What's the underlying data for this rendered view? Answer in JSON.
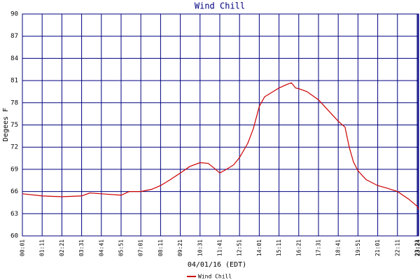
{
  "chart_data": {
    "type": "line",
    "title": "Wind Chill",
    "x_label": "04/01/16 (EDT)",
    "y_label": "Degees F",
    "x": [
      "00:01",
      "01:11",
      "02:21",
      "03:31",
      "04:00",
      "04:41",
      "05:51",
      "06:20",
      "07:01",
      "07:40",
      "08:11",
      "08:45",
      "09:21",
      "09:55",
      "10:31",
      "11:00",
      "11:20",
      "11:41",
      "12:00",
      "12:30",
      "12:51",
      "13:20",
      "13:40",
      "14:01",
      "14:20",
      "14:50",
      "15:11",
      "15:40",
      "15:55",
      "16:10",
      "16:21",
      "16:50",
      "17:31",
      "18:00",
      "18:41",
      "19:05",
      "19:20",
      "19:35",
      "19:51",
      "20:20",
      "21:01",
      "21:30",
      "22:11",
      "22:50",
      "23:21",
      "23:26"
    ],
    "series": [
      {
        "name": "Wind Chill",
        "color": "#cc0000",
        "values": [
          65.7,
          65.4,
          65.3,
          65.4,
          65.8,
          65.7,
          65.5,
          66.0,
          66.0,
          66.3,
          66.8,
          67.6,
          68.5,
          69.4,
          69.9,
          69.8,
          69.2,
          68.5,
          68.9,
          69.6,
          70.6,
          72.5,
          74.5,
          77.5,
          78.8,
          79.5,
          80.0,
          80.5,
          80.7,
          80.0,
          79.9,
          79.5,
          78.4,
          77.2,
          75.5,
          74.7,
          72.0,
          70.0,
          68.8,
          67.6,
          66.8,
          66.5,
          66.0,
          65.0,
          64.0,
          63.6
        ]
      }
    ],
    "xlim": [
      "00:01",
      "23:26"
    ],
    "xticks": [
      "00:01",
      "01:11",
      "02:21",
      "03:31",
      "04:41",
      "05:51",
      "07:01",
      "08:11",
      "09:21",
      "10:31",
      "11:41",
      "12:51",
      "14:01",
      "15:11",
      "16:21",
      "17:31",
      "18:41",
      "19:51",
      "21:01",
      "22:11",
      "23:21",
      "23:24"
    ],
    "ylim": [
      60,
      90
    ],
    "yticks": [
      60,
      63,
      66,
      69,
      72,
      75,
      78,
      81,
      84,
      87,
      90
    ],
    "grid": true
  }
}
